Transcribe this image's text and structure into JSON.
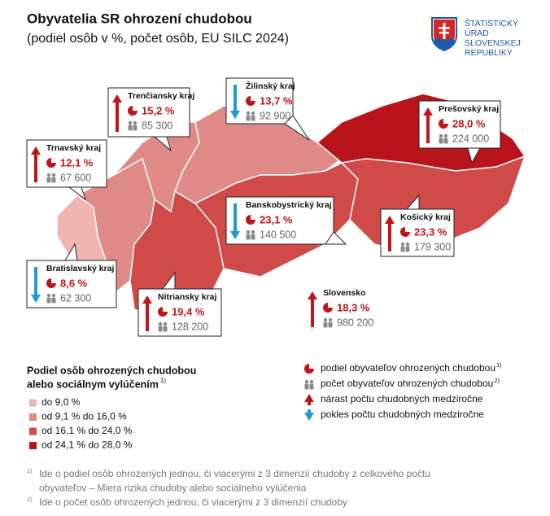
{
  "header": {
    "title": "Obyvatelia SR ohrození chudobou",
    "subtitle": "(podiel osôb v %, počet osôb, EU SILC 2024)"
  },
  "logo": {
    "lines": [
      "ŠTATISTICKÝ",
      "ÚRAD",
      "SLOVENSKEJ",
      "REPUBLIKY"
    ]
  },
  "regions": [
    {
      "name": "Trenčiansky kraj",
      "share": "15,2 %",
      "count": "85 300",
      "trend": "up",
      "color": "#e08a87"
    },
    {
      "name": "Žilinský kraj",
      "share": "13,7 %",
      "count": "92 900",
      "trend": "down",
      "color": "#e08a87"
    },
    {
      "name": "Prešovský kraj",
      "share": "28,0 %",
      "count": "224 000",
      "trend": "up",
      "color": "#b8141a"
    },
    {
      "name": "Trnavský kraj",
      "share": "12,1 %",
      "count": "67 600",
      "trend": "up",
      "color": "#e08a87"
    },
    {
      "name": "Banskobystrický kraj",
      "share": "23,1 %",
      "count": "140 500",
      "trend": "down",
      "color": "#cf4a48"
    },
    {
      "name": "Košický kraj",
      "share": "23,3 %",
      "count": "179 300",
      "trend": "up",
      "color": "#cf4a48"
    },
    {
      "name": "Bratislavský kraj",
      "share": "8,6 %",
      "count": "62 300",
      "trend": "down",
      "color": "#f0b4b1"
    },
    {
      "name": "Nitriansky kraj",
      "share": "19,4 %",
      "count": "128 200",
      "trend": "up",
      "color": "#cf4a48"
    }
  ],
  "total": {
    "name": "Slovensko",
    "share": "18,3 %",
    "count": "980 200",
    "trend": "up"
  },
  "legend": {
    "title_lines": [
      "Podiel osôb ohrozených chudobou",
      "alebo sociálnym vylúčením"
    ],
    "title_note": "1)",
    "classes": [
      {
        "label": "do 9,0 %",
        "color": "#f0b4b1"
      },
      {
        "label": "od 9,1 % do 16,0 %",
        "color": "#e08a87"
      },
      {
        "label": "od 16,1 % do 24,0 %",
        "color": "#cf4a48"
      },
      {
        "label": "od 24,1 % do 28,0 %",
        "color": "#b8141a"
      }
    ]
  },
  "key": [
    {
      "label": "podiel obyvateľov ohrozených chudobou",
      "note": "1)"
    },
    {
      "label": "počet obyvateľov ohrozených chudobou",
      "note": "2)"
    },
    {
      "label": "nárast počtu chudobných medziročne"
    },
    {
      "label": "pokles počtu chudobných medziročne"
    }
  ],
  "footnotes": [
    {
      "mark": "1)",
      "lines": [
        "Ide o podiel osôb ohrozených jednou, či viacerými z 3 dimenzií chudoby z celkového počtu",
        "obyvateľov – Miera rizika chudoby alebo sociálneho vylúčenia"
      ]
    },
    {
      "mark": "2)",
      "lines": [
        "Ide o počet osôb ohrozených jednou, či viacerými z 3 dimenzií chudoby"
      ]
    }
  ]
}
